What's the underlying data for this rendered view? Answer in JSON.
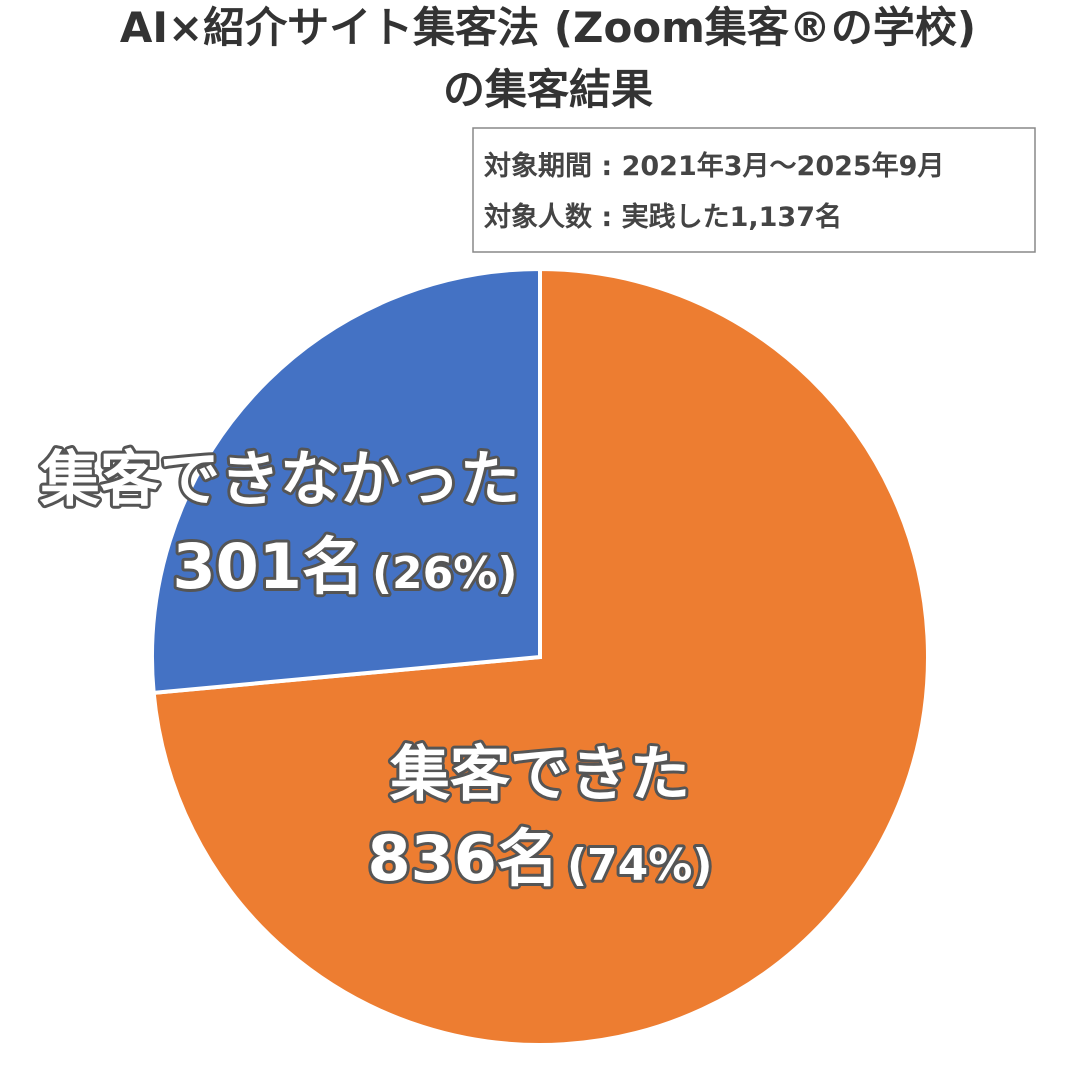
{
  "chart_data": {
    "type": "pie",
    "title": [
      "AI×紹介サイト集客法 (Zoom集客®の学校)",
      "の集客結果"
    ],
    "note": [
      "対象期間 : 2021年3月～2025年9月",
      "対象人数 : 実践した1,137名"
    ],
    "categories": [
      "集客できた",
      "集客できなかった"
    ],
    "values": [
      836,
      301
    ],
    "value_labels": [
      "836名",
      "301名"
    ],
    "percent_labels": [
      "(74%)",
      "(26%)"
    ],
    "colors": [
      "#ED7D31",
      "#4472C4"
    ]
  }
}
